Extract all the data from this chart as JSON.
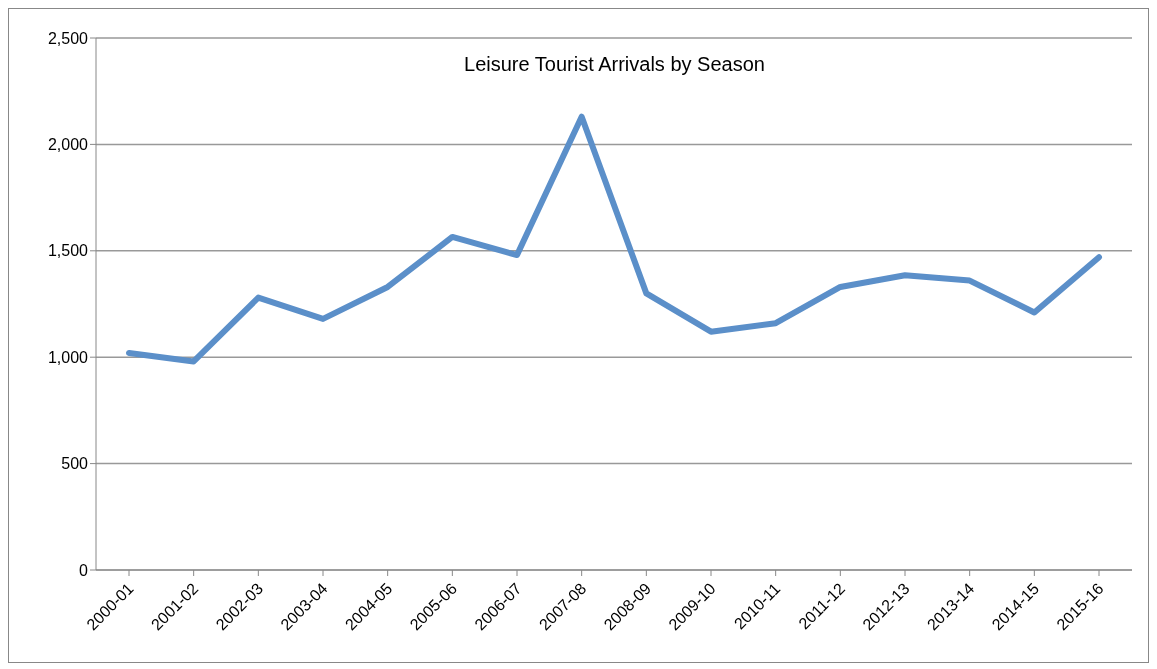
{
  "chart_data": {
    "type": "line",
    "title": "Leisure Tourist Arrivals by Season",
    "categories": [
      "2000-01",
      "2001-02",
      "2002-03",
      "2003-04",
      "2004-05",
      "2005-06",
      "2006-07",
      "2007-08",
      "2008-09",
      "2009-10",
      "2010-11",
      "2011-12",
      "2012-13",
      "2013-14",
      "2014-15",
      "2015-16"
    ],
    "series": [
      {
        "color": "#5b8fc9",
        "values": [
          1020,
          980,
          1280,
          1180,
          1330,
          1565,
          1480,
          2130,
          1300,
          1120,
          1160,
          1330,
          1385,
          1360,
          1210,
          1470
        ]
      }
    ],
    "ylim": [
      0,
      2500
    ],
    "yticks": [
      {
        "value": 0,
        "label": "0"
      },
      {
        "value": 500,
        "label": "500"
      },
      {
        "value": 1000,
        "label": "1,000"
      },
      {
        "value": 1500,
        "label": "1,500"
      },
      {
        "value": 2000,
        "label": "2,000"
      },
      {
        "value": 2500,
        "label": "2,500"
      }
    ],
    "grid": "y",
    "legend": false,
    "marker": "none",
    "line_style": "solid"
  }
}
